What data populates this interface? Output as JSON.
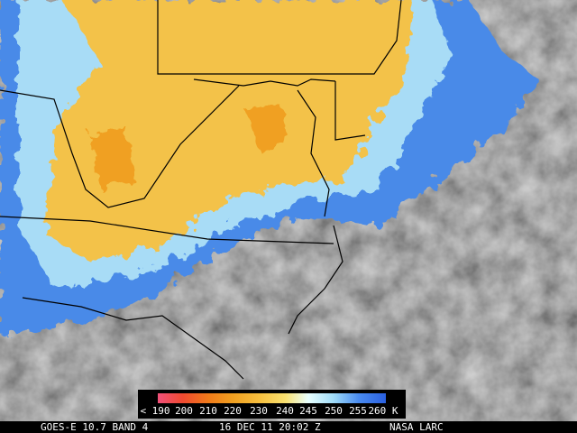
{
  "colorbar": {
    "labels": [
      "< 190",
      "200",
      "210",
      "220",
      "230",
      "240",
      "245",
      "250",
      "255",
      "260 K"
    ]
  },
  "caption": {
    "satellite": "GOES-E 10.7 BAND 4",
    "time": "16 DEC 11 20:02 Z",
    "source": "NASA LARC"
  }
}
